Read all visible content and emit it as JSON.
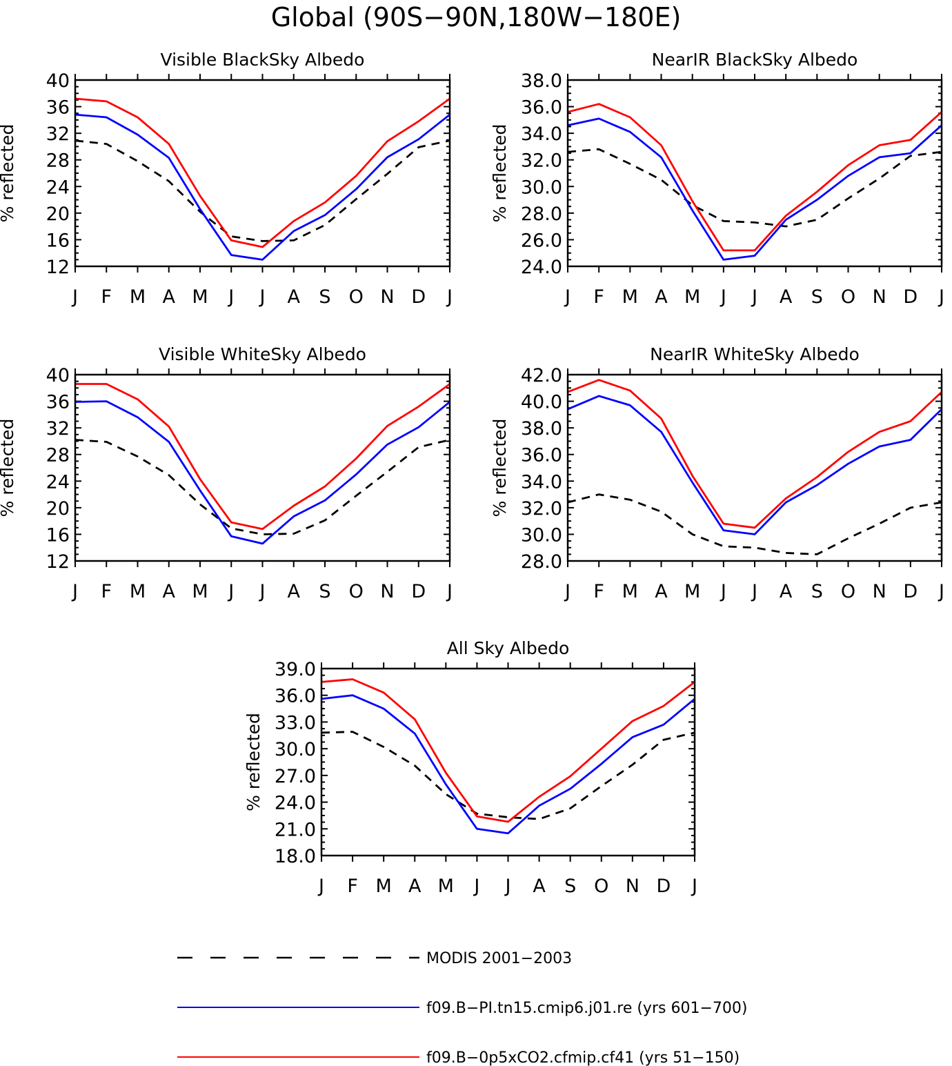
{
  "figure_title": "Global (90S−90N,180W−180E)",
  "months": [
    "J",
    "F",
    "M",
    "A",
    "M",
    "J",
    "J",
    "A",
    "S",
    "O",
    "N",
    "D",
    "J"
  ],
  "legend": [
    {
      "label": "MODIS 2001−2003",
      "color": "#000000",
      "dashed": true
    },
    {
      "label": "f09.B−PI.tn15.cmip6.j01.re (yrs 601−700)",
      "color": "#0000ff",
      "dashed": false
    },
    {
      "label": "f09.B−0p5xCO2.cfmip.cf41 (yrs 51−150)",
      "color": "#ff0000",
      "dashed": false
    }
  ],
  "chart_data": [
    {
      "type": "line",
      "title": "Visible BlackSky Albedo",
      "ylabel": "% reflected",
      "ylim": [
        12,
        40
      ],
      "yticks": [
        "12",
        "16",
        "20",
        "24",
        "28",
        "32",
        "36",
        "40"
      ],
      "categories": [
        "J",
        "F",
        "M",
        "A",
        "M",
        "J",
        "J",
        "A",
        "S",
        "O",
        "N",
        "D",
        "J"
      ],
      "series": [
        {
          "name": "MODIS 2001−2003",
          "values": [
            30.9,
            30.4,
            27.8,
            24.8,
            20.2,
            16.5,
            15.8,
            15.9,
            18.2,
            22.1,
            25.9,
            29.9,
            30.9
          ]
        },
        {
          "name": "f09.B−PI.tn15.cmip6.j01.re (yrs 601−700)",
          "values": [
            34.8,
            34.4,
            31.8,
            28.3,
            20.6,
            13.7,
            13.0,
            17.3,
            19.7,
            23.6,
            28.4,
            31.1,
            34.8
          ]
        },
        {
          "name": "f09.B−0p5xCO2.cfmip.cf41 (yrs 51−150)",
          "values": [
            37.2,
            36.8,
            34.4,
            30.4,
            22.6,
            15.9,
            14.9,
            18.8,
            21.6,
            25.6,
            30.8,
            33.8,
            37.2
          ]
        }
      ]
    },
    {
      "type": "line",
      "title": "NearIR BlackSky Albedo",
      "ylabel": "% reflected",
      "ylim": [
        24,
        38
      ],
      "yticks": [
        "24.0",
        "26.0",
        "28.0",
        "30.0",
        "32.0",
        "34.0",
        "36.0",
        "38.0"
      ],
      "categories": [
        "J",
        "F",
        "M",
        "A",
        "M",
        "J",
        "J",
        "A",
        "S",
        "O",
        "N",
        "D",
        "J"
      ],
      "series": [
        {
          "name": "MODIS 2001−2003",
          "values": [
            32.6,
            32.8,
            31.7,
            30.5,
            28.6,
            27.4,
            27.3,
            27.0,
            27.5,
            29.1,
            30.6,
            32.3,
            32.6
          ]
        },
        {
          "name": "f09.B−PI.tn15.cmip6.j01.re (yrs 601−700)",
          "values": [
            34.6,
            35.1,
            34.1,
            32.2,
            28.2,
            24.5,
            24.8,
            27.5,
            29.0,
            30.8,
            32.2,
            32.5,
            34.6
          ]
        },
        {
          "name": "f09.B−0p5xCO2.cfmip.cf41 (yrs 51−150)",
          "values": [
            35.6,
            36.2,
            35.2,
            33.1,
            28.9,
            25.2,
            25.2,
            27.8,
            29.6,
            31.6,
            33.1,
            33.5,
            35.6
          ]
        }
      ]
    },
    {
      "type": "line",
      "title": "Visible WhiteSky Albedo",
      "ylabel": "% reflected",
      "ylim": [
        12,
        40
      ],
      "yticks": [
        "12",
        "16",
        "20",
        "24",
        "28",
        "32",
        "36",
        "40"
      ],
      "categories": [
        "J",
        "F",
        "M",
        "A",
        "M",
        "J",
        "J",
        "A",
        "S",
        "O",
        "N",
        "D",
        "J"
      ],
      "series": [
        {
          "name": "MODIS 2001−2003",
          "values": [
            30.2,
            29.9,
            27.7,
            24.9,
            20.5,
            16.9,
            16.0,
            16.1,
            18.1,
            21.8,
            25.4,
            29.1,
            30.2
          ]
        },
        {
          "name": "f09.B−PI.tn15.cmip6.j01.re (yrs 601−700)",
          "values": [
            35.9,
            36.0,
            33.6,
            29.9,
            22.6,
            15.7,
            14.6,
            18.7,
            21.1,
            25.0,
            29.5,
            32.1,
            35.9
          ]
        },
        {
          "name": "f09.B−0p5xCO2.cfmip.cf41 (yrs 51−150)",
          "values": [
            38.6,
            38.6,
            36.3,
            32.2,
            24.3,
            17.8,
            16.8,
            20.3,
            23.2,
            27.4,
            32.3,
            35.2,
            38.6
          ]
        }
      ]
    },
    {
      "type": "line",
      "title": "NearIR WhiteSky Albedo",
      "ylabel": "% reflected",
      "ylim": [
        28,
        42
      ],
      "yticks": [
        "28.0",
        "30.0",
        "32.0",
        "34.0",
        "36.0",
        "38.0",
        "40.0",
        "42.0"
      ],
      "categories": [
        "J",
        "F",
        "M",
        "A",
        "M",
        "J",
        "J",
        "A",
        "S",
        "O",
        "N",
        "D",
        "J"
      ],
      "series": [
        {
          "name": "MODIS 2001−2003",
          "values": [
            32.4,
            33.0,
            32.6,
            31.7,
            30.0,
            29.1,
            29.0,
            28.6,
            28.5,
            29.7,
            30.8,
            32.0,
            32.4
          ]
        },
        {
          "name": "f09.B−PI.tn15.cmip6.j01.re (yrs 601−700)",
          "values": [
            39.4,
            40.4,
            39.7,
            37.7,
            33.9,
            30.3,
            30.0,
            32.4,
            33.7,
            35.3,
            36.6,
            37.1,
            39.4
          ]
        },
        {
          "name": "f09.B−0p5xCO2.cfmip.cf41 (yrs 51−150)",
          "values": [
            40.7,
            41.6,
            40.8,
            38.7,
            34.4,
            30.8,
            30.5,
            32.7,
            34.3,
            36.2,
            37.7,
            38.5,
            40.7
          ]
        }
      ]
    },
    {
      "type": "line",
      "title": "All Sky Albedo",
      "ylabel": "% reflected",
      "ylim": [
        18,
        39
      ],
      "yticks": [
        "18.0",
        "21.0",
        "24.0",
        "27.0",
        "30.0",
        "33.0",
        "36.0",
        "39.0"
      ],
      "categories": [
        "J",
        "F",
        "M",
        "A",
        "M",
        "J",
        "J",
        "A",
        "S",
        "O",
        "N",
        "D",
        "J"
      ],
      "series": [
        {
          "name": "MODIS 2001−2003",
          "values": [
            31.8,
            31.9,
            30.2,
            28.1,
            24.9,
            22.7,
            22.3,
            22.1,
            23.3,
            25.8,
            28.2,
            31.0,
            31.8
          ]
        },
        {
          "name": "f09.B−PI.tn15.cmip6.j01.re (yrs 601−700)",
          "values": [
            35.6,
            36.0,
            34.5,
            31.7,
            26.0,
            21.0,
            20.5,
            23.6,
            25.5,
            28.3,
            31.3,
            32.7,
            35.6
          ]
        },
        {
          "name": "f09.B−0p5xCO2.cfmip.cf41 (yrs 51−150)",
          "values": [
            37.5,
            37.8,
            36.3,
            33.3,
            27.3,
            22.4,
            21.8,
            24.6,
            26.9,
            30.0,
            33.1,
            34.8,
            37.5
          ]
        }
      ]
    }
  ]
}
